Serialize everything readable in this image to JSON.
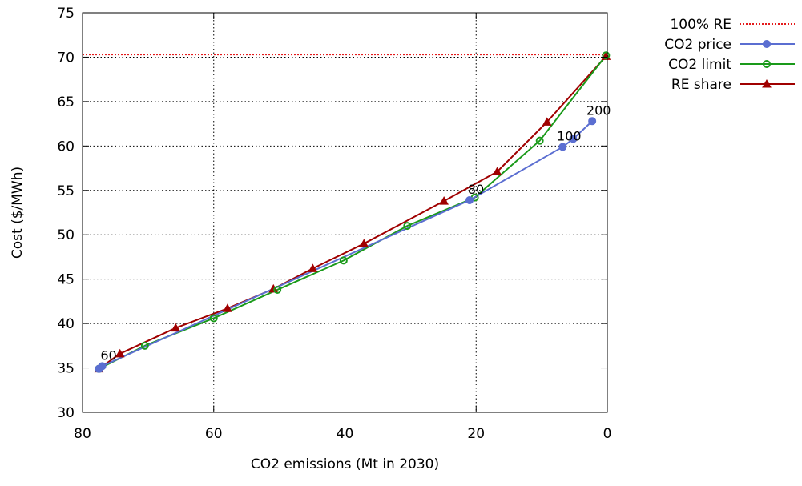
{
  "chart_data": {
    "type": "line",
    "title": "",
    "xlabel": "CO2 emissions (Mt in 2030)",
    "ylabel": "Cost ($/MWh)",
    "xlim": [
      80,
      0
    ],
    "ylim": [
      30,
      75
    ],
    "x_reversed": true,
    "xticks": [
      80,
      60,
      40,
      20,
      0
    ],
    "yticks": [
      30,
      35,
      40,
      45,
      50,
      55,
      60,
      65,
      70,
      75
    ],
    "grid": true,
    "legend_position": "outside-right-top",
    "reference_lines": [
      {
        "name": "100% RE",
        "y": 70.3,
        "color": "#e41a1c",
        "style": "dotted"
      }
    ],
    "series": [
      {
        "name": "CO2 price",
        "color": "#5b6ed1",
        "marker": "circle-filled",
        "x": [
          77.5,
          77.0,
          21.0,
          6.8,
          5.2,
          2.3
        ],
        "y": [
          34.9,
          35.2,
          53.9,
          59.9,
          60.8,
          62.8
        ]
      },
      {
        "name": "CO2 limit",
        "color": "#1a9a1a",
        "marker": "circle-open",
        "x": [
          77.5,
          70.5,
          60.0,
          50.3,
          40.2,
          30.5,
          20.2,
          10.3,
          0.2
        ],
        "y": [
          34.9,
          37.5,
          40.6,
          43.8,
          47.1,
          51.0,
          54.2,
          60.6,
          70.2
        ]
      },
      {
        "name": "RE share",
        "color": "#a00000",
        "marker": "triangle-filled",
        "x": [
          77.5,
          74.3,
          65.8,
          57.9,
          50.9,
          44.9,
          37.1,
          24.9,
          16.8,
          9.2,
          0.2
        ],
        "y": [
          34.9,
          36.6,
          39.5,
          41.7,
          43.9,
          46.2,
          49.0,
          53.8,
          57.1,
          62.7,
          70.1
        ]
      }
    ],
    "annotations": [
      {
        "text": "60",
        "x": 77.0,
        "y": 35.2
      },
      {
        "text": "80",
        "x": 21.0,
        "y": 53.9
      },
      {
        "text": "100",
        "x": 6.8,
        "y": 59.9
      },
      {
        "text": "200",
        "x": 2.3,
        "y": 62.8
      }
    ]
  }
}
